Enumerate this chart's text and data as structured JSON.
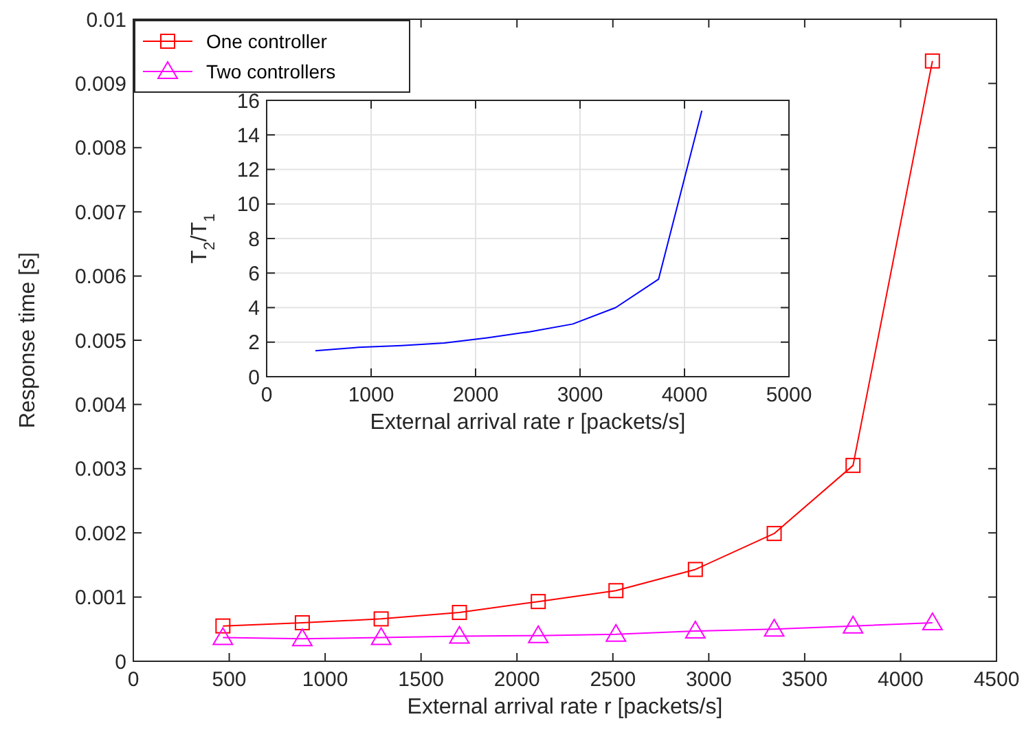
{
  "chart_data": [
    {
      "type": "line",
      "xlabel": "External arrival rate r [packets/s]",
      "ylabel": "Response time [s]",
      "x": [
        467,
        881,
        1292,
        1700,
        2111,
        2516,
        2930,
        3341,
        3752,
        4166
      ],
      "series": [
        {
          "name": "One controller",
          "color": "#ff0000",
          "marker": "square",
          "values": [
            0.00055,
            0.0006,
            0.00066,
            0.00076,
            0.00093,
            0.0011,
            0.00143,
            0.00199,
            0.00305,
            0.00935
          ]
        },
        {
          "name": "Two controllers",
          "color": "#ff00ff",
          "marker": "triangle",
          "values": [
            0.00037,
            0.00035,
            0.00037,
            0.00039,
            0.0004,
            0.00042,
            0.00047,
            0.0005,
            0.00055,
            0.0006
          ]
        }
      ],
      "xlim": [
        0,
        4500
      ],
      "xticks": [
        0,
        500,
        1000,
        1500,
        2000,
        2500,
        3000,
        3500,
        4000,
        4500
      ],
      "ylim": [
        0,
        0.01
      ],
      "yticks": [
        0,
        0.001,
        0.002,
        0.003,
        0.004,
        0.005,
        0.006,
        0.007,
        0.008,
        0.009,
        0.01
      ],
      "legend": "top left",
      "grid": false
    },
    {
      "type": "line",
      "xlabel": "External arrival rate r [packets/s]",
      "ylabel": "T$_{2}$/T$_{1}$",
      "x": [
        467,
        881,
        1292,
        1700,
        2111,
        2516,
        2930,
        3341,
        3752,
        4166
      ],
      "series": [
        {
          "color": "#0000ff",
          "values": [
            1.5,
            1.7,
            1.8,
            1.95,
            2.25,
            2.6,
            3.05,
            4.0,
            5.65,
            15.4
          ]
        }
      ],
      "xlim": [
        0,
        5000
      ],
      "xticks": [
        0,
        1000,
        2000,
        3000,
        4000,
        5000
      ],
      "ylim": [
        0,
        16
      ],
      "yticks": [
        0,
        2,
        4,
        6,
        8,
        10,
        12,
        14,
        16
      ],
      "grid": true
    }
  ]
}
